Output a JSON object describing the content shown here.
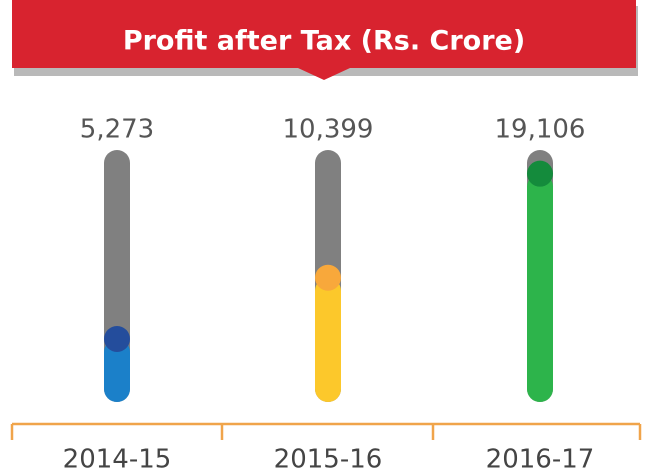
{
  "chart_data": {
    "type": "bar",
    "title": "Profit after Tax (Rs. Crore)",
    "categories": [
      "2014-15",
      "2015-16",
      "2016-17"
    ],
    "values": [
      5273,
      10399,
      19106
    ],
    "value_labels": [
      "5,273",
      "10,399",
      "19,106"
    ],
    "colors": [
      "#1b80c9",
      "#fcc82b",
      "#2db44b"
    ],
    "marker_colors": [
      "#244d9c",
      "#f8a83b",
      "#148b3c"
    ],
    "track_color": "#808080",
    "ylim": [
      0,
      20000
    ]
  }
}
